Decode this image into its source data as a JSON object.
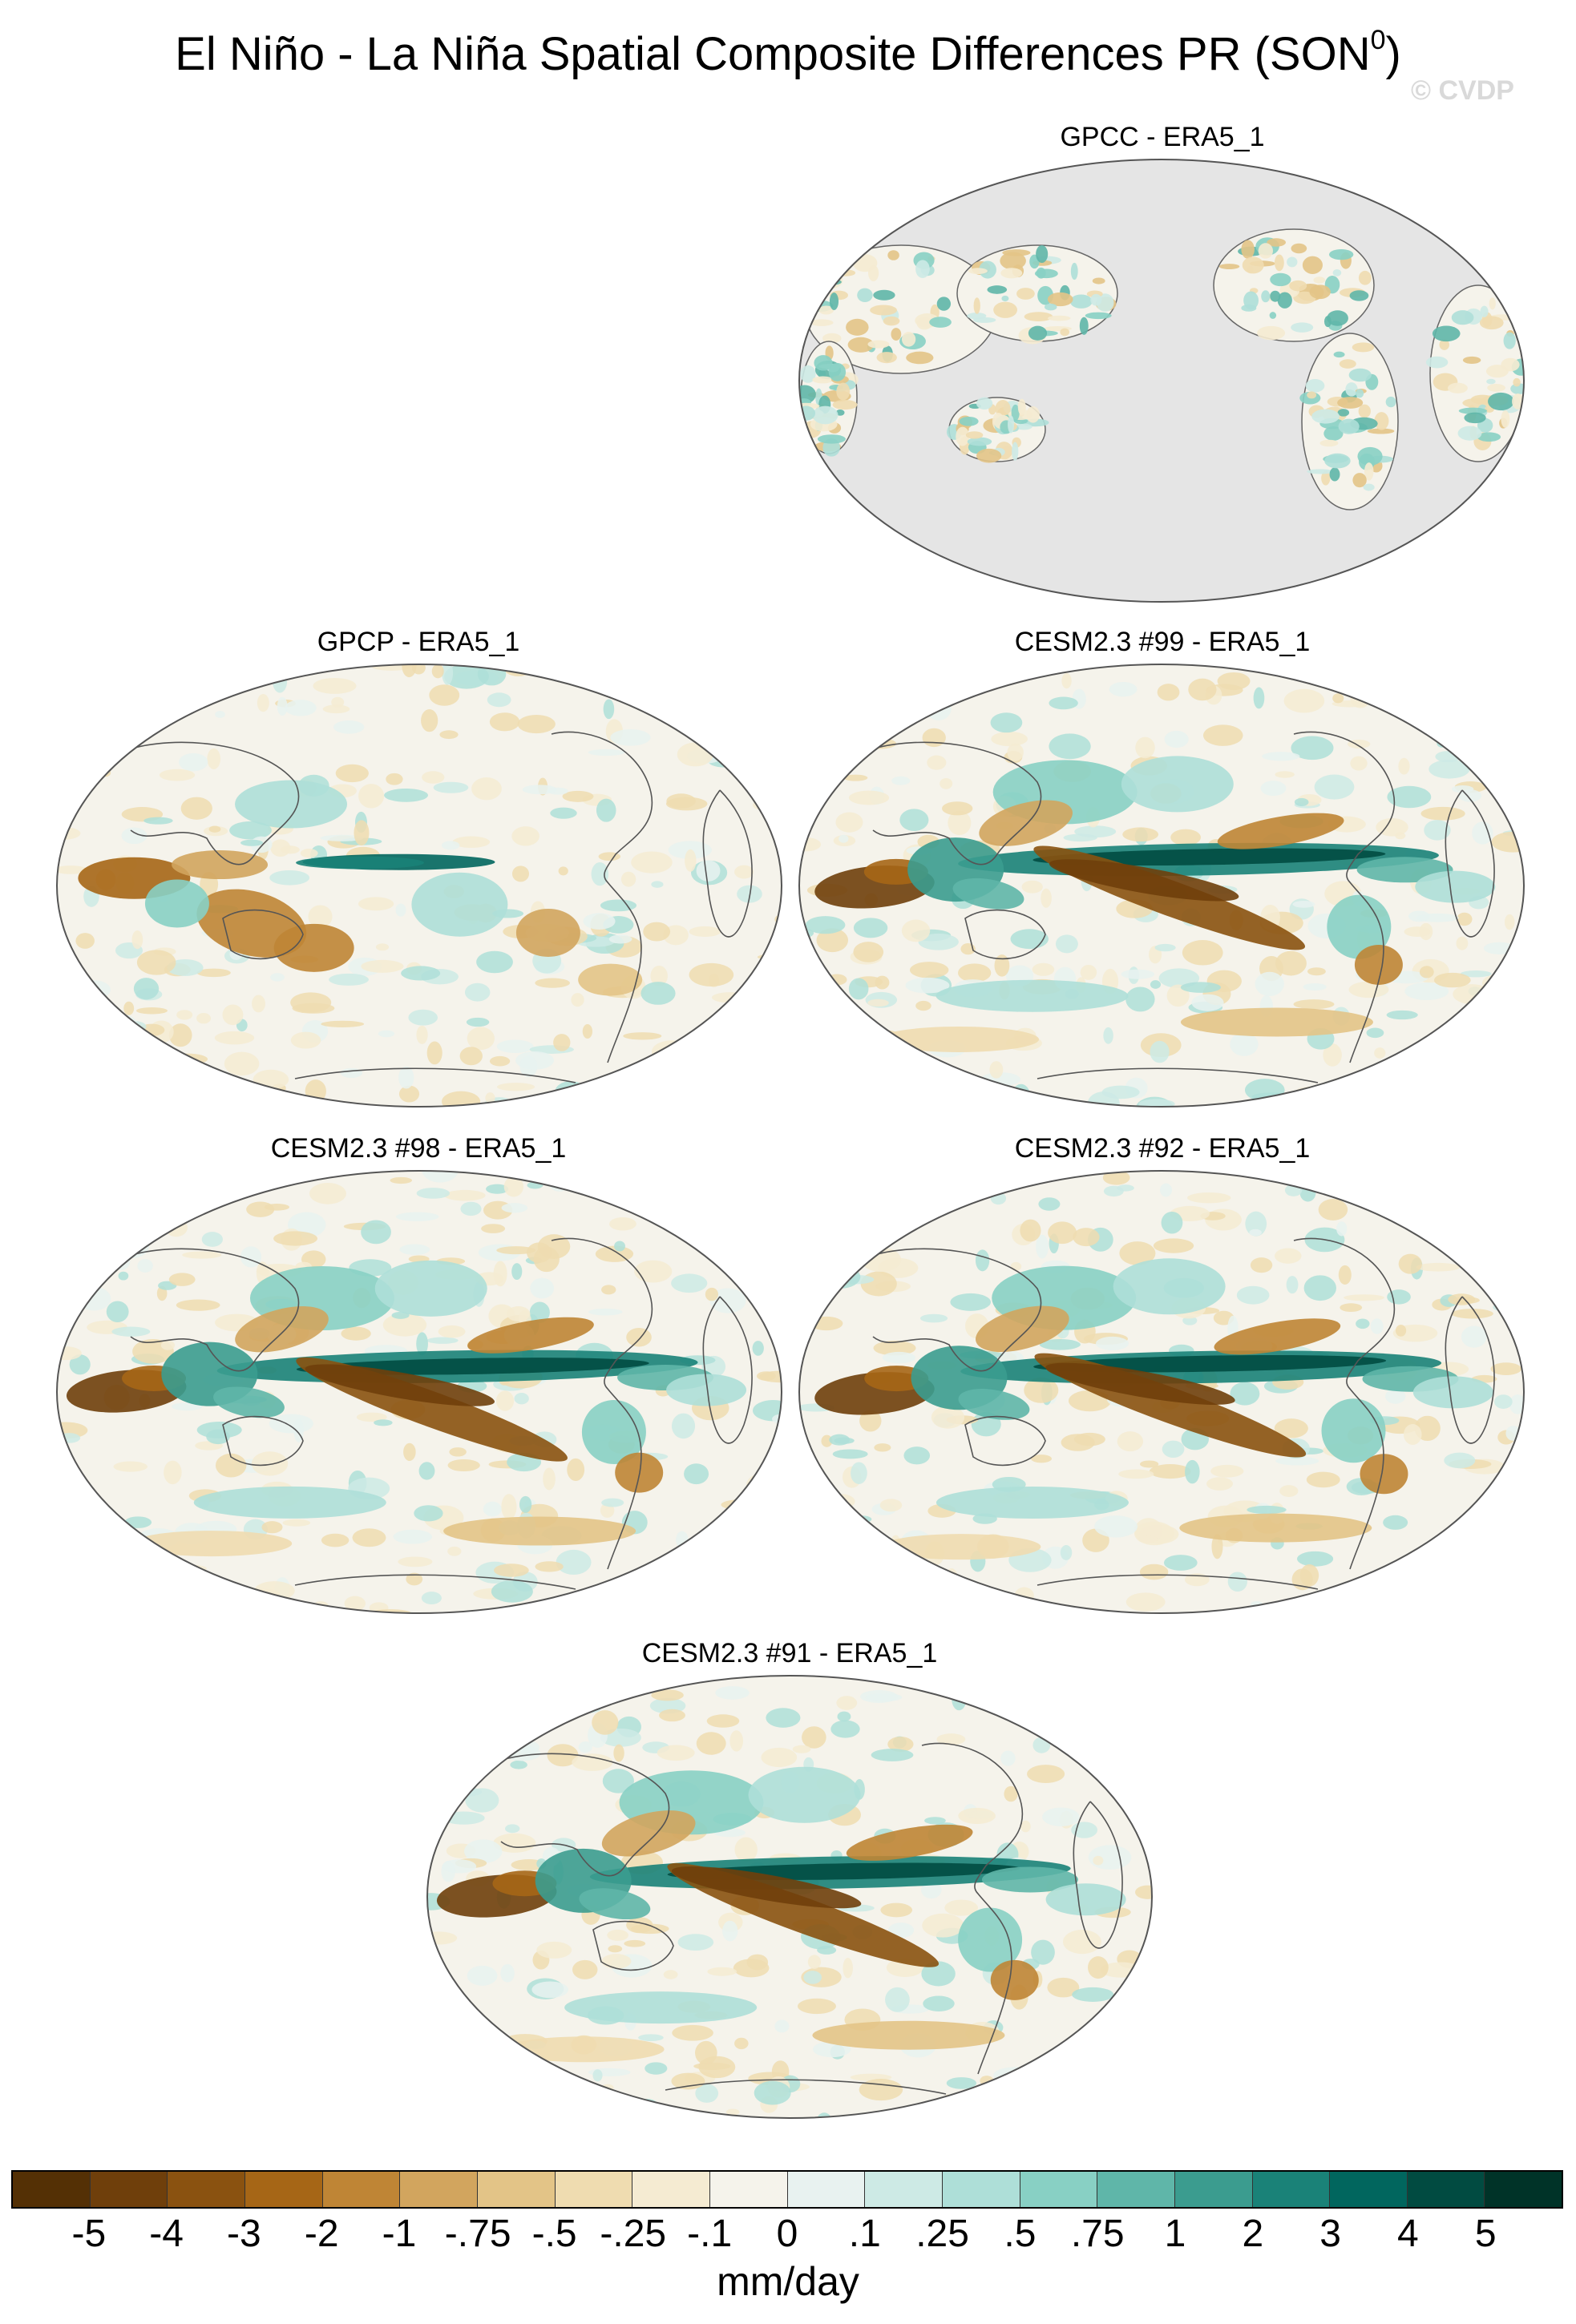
{
  "figure": {
    "title_main": "El Niño - La Niña Spatial Composite Differences PR (SON",
    "title_superscript": "0",
    "title_close": ")",
    "watermark": "© CVDP"
  },
  "panels": [
    {
      "id": "gpcc",
      "title": "GPCC - ERA5_1",
      "data_coverage": "land-only",
      "missing_color": "#e5e5e5"
    },
    {
      "id": "gpcp",
      "title": "GPCP - ERA5_1",
      "data_coverage": "global"
    },
    {
      "id": "cesm99",
      "title": "CESM2.3 #99 - ERA5_1",
      "data_coverage": "global"
    },
    {
      "id": "cesm98",
      "title": "CESM2.3 #98 - ERA5_1",
      "data_coverage": "global"
    },
    {
      "id": "cesm92",
      "title": "CESM2.3 #92 - ERA5_1",
      "data_coverage": "global"
    },
    {
      "id": "cesm91",
      "title": "CESM2.3 #91 - ERA5_1",
      "data_coverage": "global"
    }
  ],
  "colorbar": {
    "units": "mm/day",
    "labels": [
      "-5",
      "-4",
      "-3",
      "-2",
      "-1",
      "-.75",
      "-.5",
      "-.25",
      "-.1",
      "0",
      ".1",
      ".25",
      ".5",
      ".75",
      "1",
      "2",
      "3",
      "4",
      "5"
    ],
    "colors": [
      "#543005",
      "#6f3f0b",
      "#8a5210",
      "#a66616",
      "#bf8535",
      "#d2a55e",
      "#e3c487",
      "#efdcb0",
      "#f5ebd2",
      "#f5f3eb",
      "#e8f2f0",
      "#cdeae5",
      "#aedfd8",
      "#88d0c4",
      "#5fb6a9",
      "#3b9c8f",
      "#1a8278",
      "#01665e",
      "#014b41",
      "#003328"
    ]
  }
}
